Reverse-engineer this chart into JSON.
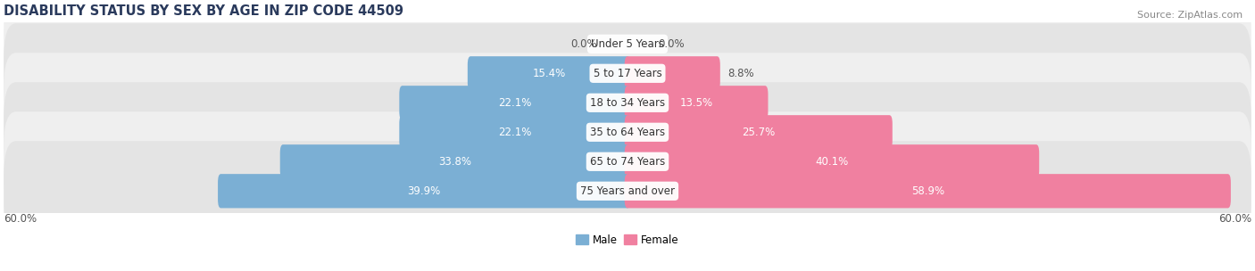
{
  "title": "DISABILITY STATUS BY SEX BY AGE IN ZIP CODE 44509",
  "source": "Source: ZipAtlas.com",
  "categories": [
    "Under 5 Years",
    "5 to 17 Years",
    "18 to 34 Years",
    "35 to 64 Years",
    "65 to 74 Years",
    "75 Years and over"
  ],
  "male_values": [
    0.0,
    15.4,
    22.1,
    22.1,
    33.8,
    39.9
  ],
  "female_values": [
    0.0,
    8.8,
    13.5,
    25.7,
    40.1,
    58.9
  ],
  "male_color": "#7bafd4",
  "female_color": "#f080a0",
  "row_bg_color_odd": "#efefef",
  "row_bg_color_even": "#e4e4e4",
  "max_value": 60.0,
  "title_fontsize": 10.5,
  "label_fontsize": 8.5,
  "source_fontsize": 8,
  "background_color": "#ffffff",
  "title_color": "#2a3a5c",
  "source_color": "#888888",
  "label_color_outside": "#555555",
  "label_color_inside": "#ffffff"
}
